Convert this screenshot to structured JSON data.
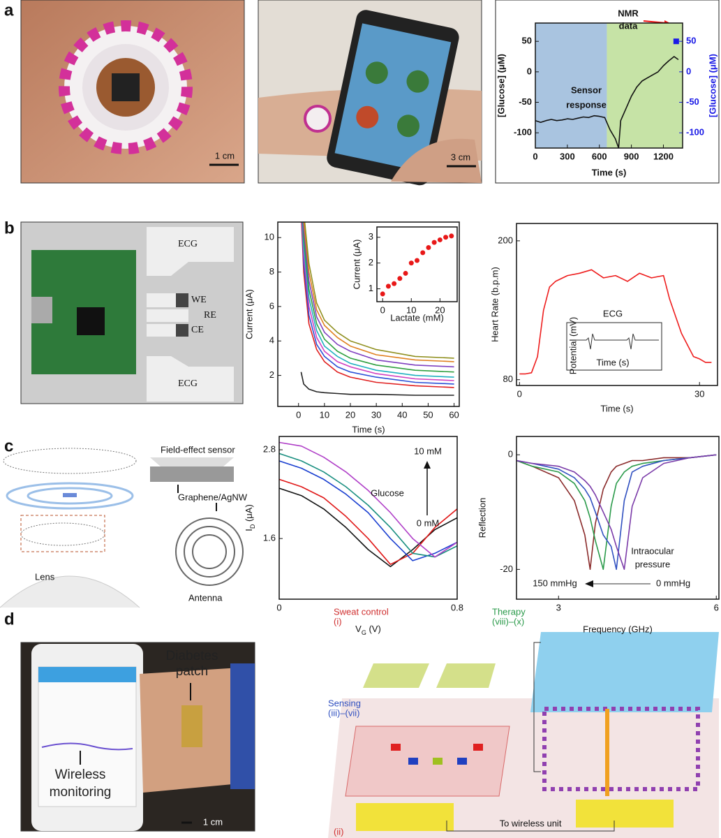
{
  "figure": {
    "panel_labels": [
      "a",
      "b",
      "c",
      "d"
    ],
    "a_photo1": {
      "scale": "1 cm"
    },
    "a_photo2": {
      "scale": "3 cm"
    },
    "b_photo": {
      "electrodes": [
        "ECG",
        "WE",
        "RE",
        "CE",
        "ECG"
      ]
    },
    "c_diagram": {
      "labels": [
        "Field-effect sensor",
        "Graphene/AgNW",
        "Lens",
        "Antenna"
      ]
    },
    "d_photo": {
      "labels": [
        "Diabetes",
        "patch",
        "Wireless",
        "monitoring"
      ],
      "scale": "1 cm"
    },
    "d_diagram": {
      "labels": [
        "Sweat control",
        "(i)",
        "Therapy",
        "(viii)–(x)",
        "Sensing",
        "(iii)–(vii)",
        "(ii)",
        "To wireless unit"
      ]
    }
  },
  "chart_data": [
    {
      "type": "line",
      "xlabel": "Time (s)",
      "ylabel": "[Glucose] (μM)",
      "y2label": "[Glucose] (μM)",
      "y2color": "#1a1ae6",
      "xlim": [
        0,
        1380
      ],
      "ylim": [
        -125,
        80
      ],
      "y2lim": [
        -125,
        80
      ],
      "xticks": [
        0,
        300,
        600,
        900,
        1200
      ],
      "yticks": [
        -100,
        -50,
        0,
        50
      ],
      "y2ticks": [
        -100,
        -50,
        0,
        50
      ],
      "regions": [
        {
          "from": 0,
          "to": 670,
          "color": "#a9c4e0"
        },
        {
          "from": 670,
          "to": 1380,
          "color": "#c6e3a6"
        }
      ],
      "series": [
        {
          "color": "#111111",
          "x": [
            0,
            50,
            100,
            150,
            200,
            250,
            300,
            350,
            400,
            450,
            500,
            550,
            600,
            650,
            700,
            750,
            780,
            800,
            850,
            900,
            950,
            1000,
            1050,
            1100,
            1150,
            1200,
            1250,
            1300,
            1340
          ],
          "values": [
            -80,
            -83,
            -80,
            -78,
            -80,
            -79,
            -77,
            -78,
            -76,
            -74,
            -75,
            -72,
            -73,
            -75,
            -95,
            -110,
            -125,
            -80,
            -60,
            -40,
            -25,
            -15,
            -10,
            -5,
            0,
            10,
            18,
            25,
            20
          ]
        },
        {
          "color": "#1a1ae6",
          "axis": "y2",
          "x": [
            1320
          ],
          "values": [
            50
          ]
        }
      ],
      "annotations": [
        "NMR",
        "data",
        "Sensor",
        "response"
      ]
    },
    {
      "type": "line",
      "xlabel": "Time (s)",
      "ylabel": "Current (μA)",
      "xlim": [
        -8,
        62
      ],
      "ylim": [
        0.2,
        10.9
      ],
      "xticks": [
        0,
        10,
        20,
        30,
        40,
        50,
        60
      ],
      "yticks": [
        2,
        4,
        6,
        8,
        10
      ],
      "x": [
        1,
        2,
        4,
        7,
        10,
        15,
        20,
        30,
        45,
        60
      ],
      "series": [
        {
          "color": "#222222",
          "values": [
            2.2,
            1.5,
            1.2,
            1.05,
            1.0,
            0.95,
            0.9,
            0.9,
            0.85,
            0.85
          ]
        },
        {
          "color": "#e02020",
          "values": [
            11.5,
            8,
            5,
            3.5,
            2.8,
            2.2,
            1.9,
            1.6,
            1.4,
            1.3
          ]
        },
        {
          "color": "#2a4fd6",
          "values": [
            12,
            8.5,
            5.5,
            3.8,
            3.1,
            2.5,
            2.2,
            1.9,
            1.6,
            1.5
          ]
        },
        {
          "color": "#d040c0",
          "values": [
            12.5,
            9,
            6,
            4.2,
            3.4,
            2.8,
            2.5,
            2.1,
            1.8,
            1.7
          ]
        },
        {
          "color": "#20b0c0",
          "values": [
            13,
            9.5,
            6.5,
            4.6,
            3.7,
            3.1,
            2.7,
            2.3,
            2.0,
            1.9
          ]
        },
        {
          "color": "#30a040",
          "values": [
            13.5,
            10,
            7,
            5,
            4.1,
            3.4,
            3.0,
            2.6,
            2.3,
            2.2
          ]
        },
        {
          "color": "#8040c0",
          "values": [
            14,
            10.5,
            7.5,
            5.4,
            4.5,
            3.8,
            3.4,
            2.9,
            2.6,
            2.5
          ]
        },
        {
          "color": "#e08020",
          "values": [
            14.5,
            11,
            8,
            5.8,
            4.9,
            4.2,
            3.7,
            3.2,
            2.9,
            2.8
          ]
        },
        {
          "color": "#909020",
          "values": [
            15,
            11.5,
            8.5,
            6.2,
            5.2,
            4.5,
            4.0,
            3.5,
            3.1,
            3.0
          ]
        }
      ]
    },
    {
      "type": "scatter",
      "xlabel": "Lactate (mM)",
      "ylabel": "Current (μA)",
      "color": "#e81818",
      "xlim": [
        -2,
        26
      ],
      "ylim": [
        0.5,
        3.4
      ],
      "xticks": [
        0,
        10,
        20
      ],
      "yticks": [
        1,
        2,
        3
      ],
      "x": [
        0,
        2,
        4,
        6,
        8,
        10,
        12,
        14,
        16,
        18,
        20,
        22,
        24
      ],
      "values": [
        0.8,
        1.1,
        1.2,
        1.4,
        1.6,
        2.0,
        2.1,
        2.4,
        2.6,
        2.8,
        2.9,
        3.0,
        3.05
      ]
    },
    {
      "type": "line",
      "xlabel": "Time (s)",
      "ylabel": "Heart Rate  (b.p.m)",
      "xlim": [
        -0.5,
        33
      ],
      "ylim": [
        75,
        215
      ],
      "xticks": [
        0,
        30
      ],
      "yticks": [
        80,
        200
      ],
      "x": [
        0,
        1,
        2,
        3,
        4,
        5,
        6,
        8,
        10,
        12,
        14,
        16,
        18,
        20,
        22,
        24,
        25,
        26,
        27,
        28,
        29,
        30,
        31,
        32
      ],
      "series": [
        {
          "color": "#ee1c1c",
          "values": [
            85,
            85,
            86,
            100,
            140,
            160,
            165,
            170,
            172,
            175,
            168,
            170,
            165,
            172,
            168,
            170,
            150,
            135,
            120,
            110,
            100,
            98,
            95,
            95
          ]
        }
      ],
      "inset": {
        "title": "ECG",
        "xlabel": "Time (s)",
        "ylabel": "Potential (mV)"
      }
    },
    {
      "type": "line",
      "xlabel": {
        "main": "V",
        "sub": "G",
        "tail": " (V)"
      },
      "ylabel": {
        "main": "I",
        "sub": "D",
        "tail": " (μA)"
      },
      "xlim": [
        0,
        0.8
      ],
      "ylim": [
        0.78,
        2.98
      ],
      "xticks": [
        0,
        0.8
      ],
      "yticks": [
        1.6,
        2.8
      ],
      "x": [
        0,
        0.1,
        0.2,
        0.3,
        0.4,
        0.5,
        0.6,
        0.7,
        0.8
      ],
      "series": [
        {
          "color": "#111111",
          "values": [
            2.28,
            2.18,
            2.0,
            1.75,
            1.45,
            1.22,
            1.45,
            1.72,
            1.88
          ]
        },
        {
          "color": "#e01818",
          "values": [
            2.4,
            2.3,
            2.15,
            1.9,
            1.6,
            1.25,
            1.4,
            1.75,
            2.0
          ]
        },
        {
          "color": "#1a3fd0",
          "values": [
            2.65,
            2.55,
            2.4,
            2.2,
            1.95,
            1.6,
            1.3,
            1.4,
            1.55
          ]
        },
        {
          "color": "#1a8f80",
          "values": [
            2.75,
            2.65,
            2.5,
            2.3,
            2.05,
            1.75,
            1.4,
            1.35,
            1.5
          ]
        },
        {
          "color": "#b040c8",
          "values": [
            2.9,
            2.85,
            2.7,
            2.5,
            2.25,
            1.95,
            1.6,
            1.35,
            1.55
          ]
        }
      ],
      "annotations": [
        "10 mM",
        "Glucose",
        "0 mM"
      ]
    },
    {
      "type": "line",
      "xlabel": "Frequency (GHz)",
      "ylabel": "Reflection",
      "xlim": [
        2.2,
        6.05
      ],
      "ylim": [
        -25.2,
        3.2
      ],
      "xticks": [
        3,
        6
      ],
      "yticks": [
        0,
        -20
      ],
      "x": [
        2.2,
        2.5,
        3,
        3.3,
        3.5,
        3.6,
        3.7,
        3.85,
        4.0,
        4.1,
        4.25,
        4.4,
        4.6,
        5,
        5.5,
        6
      ],
      "series": [
        {
          "color": "#8a2a2a",
          "values": [
            -1,
            -2,
            -4,
            -8,
            -14,
            -20,
            -12,
            -6,
            -3,
            -2,
            -1.5,
            -1,
            -1,
            -0.5,
            -0.5,
            0
          ]
        },
        {
          "color": "#2a9a4a",
          "values": [
            -1,
            -2,
            -3,
            -5,
            -8,
            -11,
            -15,
            -20,
            -9,
            -5,
            -3,
            -2,
            -1.5,
            -1,
            -0.5,
            0
          ]
        },
        {
          "color": "#3050c0",
          "values": [
            -1,
            -1.5,
            -2.5,
            -4,
            -6,
            -7.5,
            -10,
            -14,
            -16,
            -20,
            -8,
            -3,
            -2,
            -1,
            -0.5,
            0
          ]
        },
        {
          "color": "#7a3aa8",
          "values": [
            -1,
            -1.5,
            -2,
            -3,
            -4.5,
            -5.5,
            -7,
            -10,
            -13,
            -16,
            -20,
            -9,
            -4,
            -1.5,
            -0.5,
            0
          ]
        }
      ],
      "annotations": [
        "Intraocular",
        "pressure",
        "150 mmHg",
        "0 mmHg"
      ]
    }
  ]
}
